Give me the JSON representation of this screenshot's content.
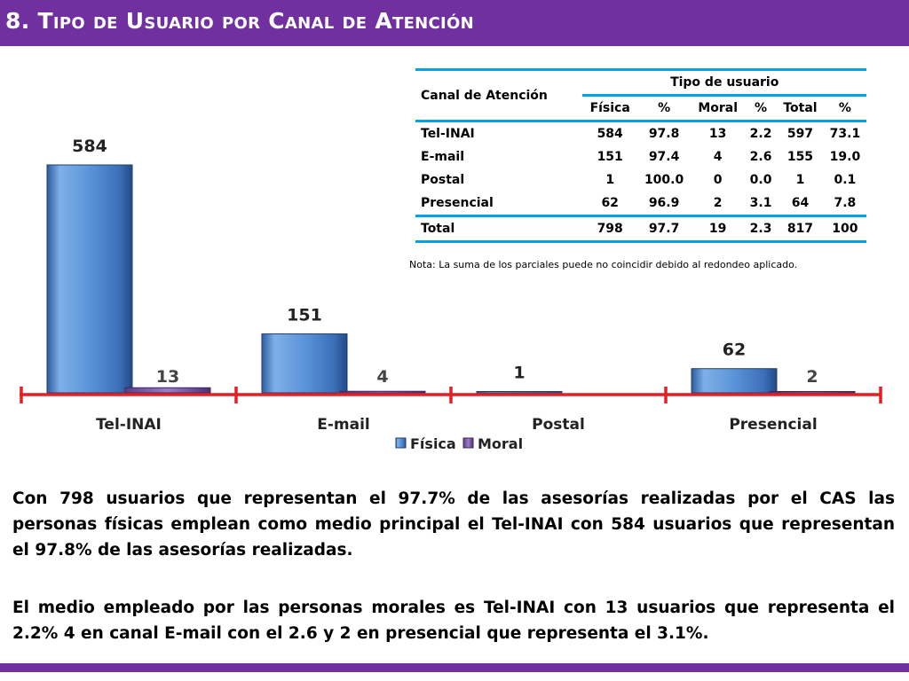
{
  "header": {
    "title": "8. Tipo de Usuario por Canal de Atención"
  },
  "colors": {
    "header_bg": "#7030a0",
    "fisica": "#4f81bd",
    "moral": "#8064a2",
    "axis": "#e31f26",
    "table_rule": "#00a2e8"
  },
  "table": {
    "canal_header": "Canal de Atención",
    "tipo_header": "Tipo de usuario",
    "columns": [
      "Física",
      "%",
      "Moral",
      "%",
      "Total",
      "%"
    ],
    "rows": [
      {
        "canal": "Tel-INAI",
        "fisica": "584",
        "fisica_pct": "97.8",
        "moral": "13",
        "moral_pct": "2.2",
        "total": "597",
        "total_pct": "73.1"
      },
      {
        "canal": "E-mail",
        "fisica": "151",
        "fisica_pct": "97.4",
        "moral": "4",
        "moral_pct": "2.6",
        "total": "155",
        "total_pct": "19.0"
      },
      {
        "canal": "Postal",
        "fisica": "1",
        "fisica_pct": "100.0",
        "moral": "0",
        "moral_pct": "0.0",
        "total": "1",
        "total_pct": "0.1"
      },
      {
        "canal": "Presencial",
        "fisica": "62",
        "fisica_pct": "96.9",
        "moral": "2",
        "moral_pct": "3.1",
        "total": "64",
        "total_pct": "7.8"
      }
    ],
    "total_row": {
      "canal": "Total",
      "fisica": "798",
      "fisica_pct": "97.7",
      "moral": "19",
      "moral_pct": "2.3",
      "total": "817",
      "total_pct": "100"
    }
  },
  "nota": "Nota: La suma de los parciales puede no coincidir debido al redondeo aplicado.",
  "chart_data": {
    "type": "bar",
    "categories": [
      "Tel-INAI",
      "E-mail",
      "Postal",
      "Presencial"
    ],
    "series": [
      {
        "name": "Física",
        "values": [
          584,
          151,
          1,
          62
        ]
      },
      {
        "name": "Moral",
        "values": [
          13,
          4,
          0,
          2
        ]
      }
    ],
    "data_labels": {
      "Física": [
        "584",
        "151",
        "1",
        "62"
      ],
      "Moral": [
        "13",
        "4",
        "",
        "2"
      ]
    },
    "legend_position": "bottom",
    "grid": false
  },
  "paragraphs": {
    "p1": "Con 798 usuarios que representan el 97.7% de las asesorías realizadas por el CAS las personas físicas emplean como medio principal el Tel-INAI con 584 usuarios que representan el 97.8% de las asesorías realizadas.",
    "p2": "El medio empleado por las personas morales es Tel-INAI con 13 usuarios que representa el 2.2% 4 en canal E-mail con el 2.6 y 2 en presencial que representa el 3.1%."
  }
}
